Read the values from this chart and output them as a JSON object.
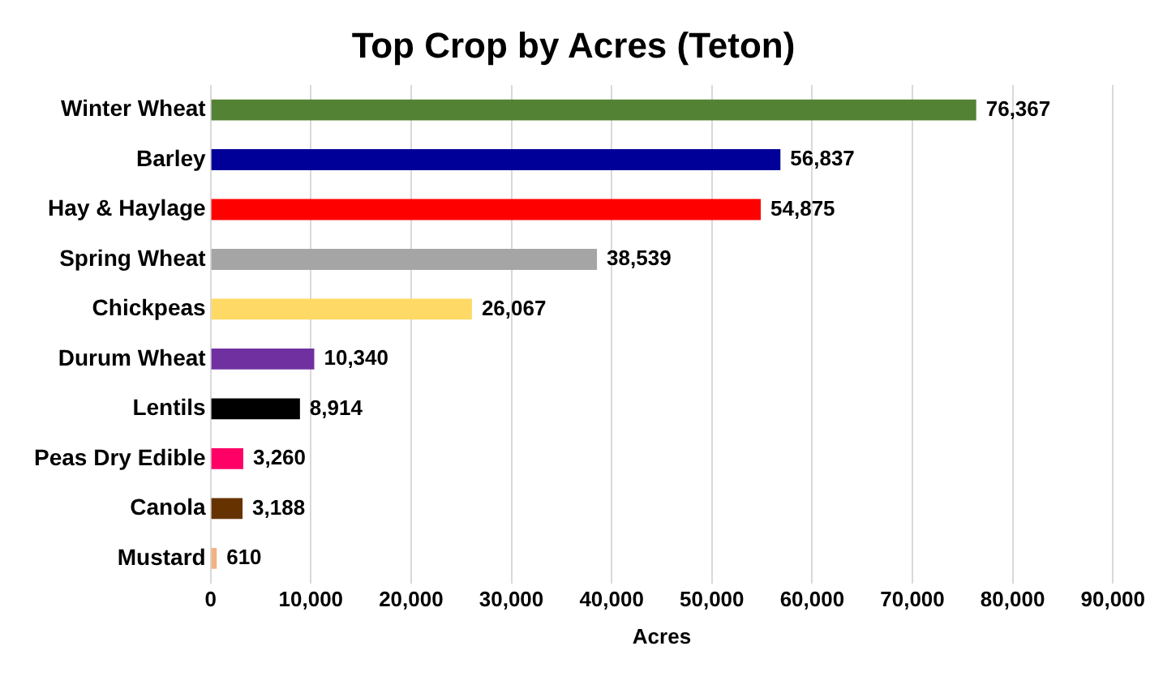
{
  "chart_data": {
    "type": "bar",
    "orientation": "horizontal",
    "title": "Top Crop by Acres (Teton)",
    "xlabel": "Acres",
    "categories": [
      "Winter Wheat",
      "Barley",
      "Hay & Haylage",
      "Spring Wheat",
      "Chickpeas",
      "Durum Wheat",
      "Lentils",
      "Peas Dry Edible",
      "Canola",
      "Mustard"
    ],
    "values": [
      76367,
      56837,
      54875,
      38539,
      26067,
      10340,
      8914,
      3260,
      3188,
      610
    ],
    "colors": [
      "#548235",
      "#000099",
      "#ff0000",
      "#a5a5a5",
      "#ffd966",
      "#7030a0",
      "#000000",
      "#ff0066",
      "#663300",
      "#f4b183"
    ],
    "value_labels": [
      "76,367",
      "56,837",
      "54,875",
      "38,539",
      "26,067",
      "10,340",
      "8,914",
      "3,260",
      "3,188",
      "610"
    ],
    "xlim": [
      0,
      90000
    ],
    "xticks": [
      {
        "value": 0,
        "label": "0"
      },
      {
        "value": 10000,
        "label": "10,000"
      },
      {
        "value": 20000,
        "label": "20,000"
      },
      {
        "value": 30000,
        "label": "30,000"
      },
      {
        "value": 40000,
        "label": "40,000"
      },
      {
        "value": 50000,
        "label": "50,000"
      },
      {
        "value": 60000,
        "label": "60,000"
      },
      {
        "value": 70000,
        "label": "70,000"
      },
      {
        "value": 80000,
        "label": "80,000"
      },
      {
        "value": 90000,
        "label": "90,000"
      }
    ],
    "grid": "x",
    "legend": false
  }
}
